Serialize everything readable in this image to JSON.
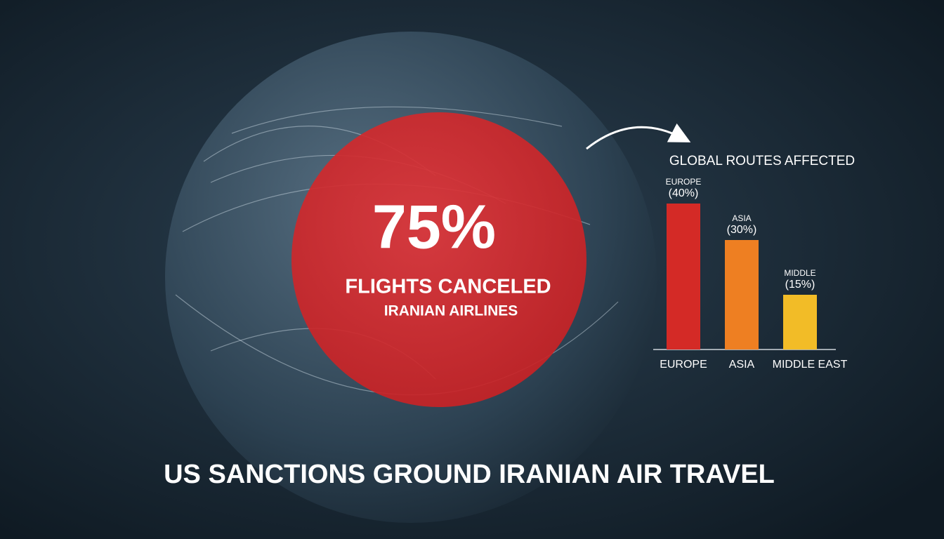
{
  "stat": "75%",
  "stat_caption": "FLIGHTS CANCELED",
  "stat_subcaption": "IRANIAN AIRLINES",
  "headline": "US SANCTIONS GROUND IRANIAN AIR TRAVEL",
  "chart_data": {
    "type": "bar",
    "title": "GLOBAL ROUTES AFFECTED",
    "categories": [
      "EUROPE",
      "ASIA",
      "MIDDLE EAST"
    ],
    "bar_labels": [
      "EUROPE",
      "ASIA",
      "MIDDLE"
    ],
    "values": [
      40,
      30,
      15
    ],
    "value_labels": [
      "(40%)",
      "(30%)",
      "(15%)"
    ],
    "colors": [
      "#d42a26",
      "#ee7f22",
      "#f2bc27"
    ]
  }
}
